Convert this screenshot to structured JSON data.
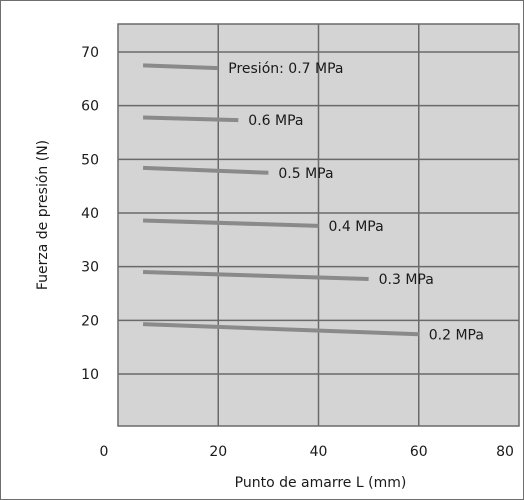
{
  "chart_data": {
    "type": "line",
    "xlabel": "Punto de amarre L (mm)",
    "ylabel": "Fuerza de presión (N)",
    "xlim": [
      0,
      80
    ],
    "ylim": [
      0,
      75
    ],
    "x_ticks": [
      "0",
      "20",
      "40",
      "60",
      "80"
    ],
    "y_ticks": [
      "10",
      "20",
      "30",
      "40",
      "50",
      "60",
      "70"
    ],
    "x_tick_values": [
      0,
      20,
      40,
      60,
      80
    ],
    "y_tick_values": [
      10,
      20,
      30,
      40,
      50,
      60,
      70
    ],
    "grid": true,
    "series": [
      {
        "name": "Presión: 0.7 MPa",
        "x": [
          5,
          20
        ],
        "y": [
          67.5,
          67.0
        ]
      },
      {
        "name": "0.6 MPa",
        "x": [
          5,
          24
        ],
        "y": [
          57.8,
          57.3
        ]
      },
      {
        "name": "0.5 MPa",
        "x": [
          5,
          30
        ],
        "y": [
          48.4,
          47.5
        ]
      },
      {
        "name": "0.4 MPa",
        "x": [
          5,
          40
        ],
        "y": [
          38.6,
          37.6
        ]
      },
      {
        "name": "0.3 MPa",
        "x": [
          5,
          50
        ],
        "y": [
          29.0,
          27.7
        ]
      },
      {
        "name": "0.2 MPa",
        "x": [
          5,
          60
        ],
        "y": [
          19.3,
          17.4
        ]
      }
    ]
  },
  "colors": {
    "plot_background": "#d4d4d4",
    "grid": "#6a6a6a",
    "series_line": "#8a8a8a"
  }
}
